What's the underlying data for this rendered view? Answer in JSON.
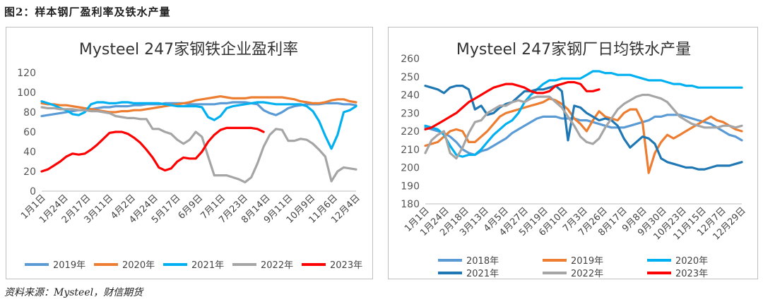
{
  "figure_title": "图2：样本钢厂盈利率及铁水产量",
  "source": "资料来源：Mysteel，财信期货",
  "colors": {
    "2018": "#5b9bd5",
    "2019": "#5b9bd5",
    "2020": "#ed7d31",
    "2021": "#00b0f0",
    "2022": "#a5a5a5",
    "2023": "#ff0000"
  },
  "chart_data": [
    {
      "type": "line",
      "title": "Mysteel 247家钢铁企业盈利率",
      "ylim": [
        0,
        120
      ],
      "yticks": [
        "0",
        "20",
        "40",
        "60",
        "80",
        "100",
        "120"
      ],
      "x_tick_labels": [
        "1月1日",
        "1月24日",
        "2月17日",
        "3月11日",
        "4月2日",
        "4月24日",
        "5月17日",
        "6月9日",
        "7月1日",
        "7月23日",
        "8月14日",
        "9月11日",
        "10月9日",
        "11月6日",
        "12月4日"
      ],
      "n_points": 52,
      "series": [
        {
          "name": "2019年",
          "color": "#5b9bd5",
          "values": [
            76,
            77,
            78,
            79,
            80,
            81,
            82,
            82,
            83,
            84,
            85,
            85,
            86,
            86,
            86,
            87,
            87,
            88,
            88,
            88,
            89,
            89,
            89,
            89,
            88,
            88,
            88,
            88,
            88,
            89,
            89,
            90,
            90,
            90,
            89,
            88,
            82,
            79,
            77,
            80,
            84,
            86,
            87,
            88,
            88,
            88,
            89,
            89,
            89,
            88,
            88,
            87
          ]
        },
        {
          "name": "2020年",
          "color": "#ed7d31",
          "values": [
            89,
            88,
            88,
            87,
            87,
            86,
            85,
            84,
            83,
            82,
            81,
            80,
            80,
            81,
            81,
            82,
            82,
            83,
            84,
            85,
            86,
            87,
            88,
            89,
            90,
            92,
            93,
            94,
            95,
            96,
            95,
            94,
            94,
            94,
            95,
            95,
            95,
            95,
            95,
            95,
            94,
            93,
            91,
            90,
            89,
            89,
            90,
            92,
            93,
            93,
            91,
            90
          ]
        },
        {
          "name": "2021年",
          "color": "#00b0f0",
          "values": [
            91,
            89,
            87,
            84,
            82,
            78,
            77,
            80,
            88,
            90,
            90,
            89,
            89,
            90,
            90,
            89,
            89,
            89,
            89,
            89,
            88,
            87,
            86,
            86,
            86,
            86,
            85,
            75,
            72,
            76,
            84,
            86,
            87,
            88,
            89,
            90,
            90,
            89,
            88,
            88,
            88,
            88,
            88,
            86,
            81,
            71,
            56,
            43,
            57,
            80,
            82,
            86
          ]
        },
        {
          "name": "2022年",
          "color": "#a5a5a5",
          "values": [
            85,
            84,
            84,
            83,
            83,
            83,
            82,
            82,
            81,
            81,
            80,
            79,
            76,
            75,
            74,
            74,
            73,
            73,
            63,
            63,
            60,
            58,
            52,
            48,
            52,
            60,
            55,
            35,
            16,
            16,
            16,
            14,
            12,
            9,
            14,
            28,
            45,
            57,
            63,
            62,
            51,
            51,
            53,
            52,
            48,
            42,
            35,
            10,
            20,
            24,
            23,
            22
          ]
        },
        {
          "name": "2023年",
          "color": "#ff0000",
          "values": [
            20,
            22,
            26,
            30,
            35,
            38,
            37,
            38,
            42,
            47,
            53,
            59,
            60,
            60,
            58,
            54,
            49,
            42,
            34,
            24,
            21,
            23,
            30,
            34,
            33,
            33,
            40,
            50,
            57,
            62,
            64,
            64,
            64,
            64,
            64,
            63,
            60
          ]
        }
      ]
    },
    {
      "type": "line",
      "title": "Mysteel 247家钢厂日均铁水产量",
      "ylim": [
        180,
        260
      ],
      "yticks": [
        "180",
        "190",
        "200",
        "210",
        "220",
        "230",
        "240",
        "250",
        "260"
      ],
      "x_tick_labels": [
        "1月1日",
        "1月24日",
        "2月18日",
        "3月13日",
        "4月5日",
        "4月27日",
        "5月19日",
        "6月10日",
        "7月3日",
        "7月26日",
        "8月17日",
        "9月8日",
        "9月30日",
        "10月23日",
        "11月15日",
        "12月7日",
        "12月29日"
      ],
      "n_points": 52,
      "series": [
        {
          "name": "2018年",
          "color": "#5b9bd5",
          "values": [
            222,
            221,
            220,
            219,
            217,
            214,
            210,
            208,
            207,
            209,
            210,
            212,
            214,
            216,
            219,
            221,
            223,
            225,
            227,
            228,
            228,
            228,
            227,
            227,
            227,
            226,
            226,
            225,
            224,
            223,
            222,
            222,
            222,
            223,
            224,
            225,
            226,
            228,
            228,
            229,
            229,
            229,
            228,
            227,
            226,
            225,
            224,
            222,
            220,
            218,
            217,
            215
          ]
        },
        {
          "name": "2019年",
          "color": "#ed7d31",
          "values": [
            212,
            213,
            214,
            217,
            220,
            221,
            220,
            214,
            214,
            217,
            220,
            224,
            228,
            230,
            231,
            232,
            233,
            234,
            235,
            236,
            238,
            237,
            235,
            232,
            227,
            224,
            220,
            226,
            231,
            228,
            227,
            226,
            230,
            232,
            232,
            225,
            197,
            208,
            214,
            218,
            216,
            218,
            220,
            222,
            224,
            226,
            228,
            226,
            225,
            223,
            221,
            220
          ]
        },
        {
          "name": "2020年",
          "color": "#00b0f0",
          "values": [
            223,
            222,
            221,
            218,
            212,
            207,
            206,
            207,
            207,
            210,
            214,
            218,
            221,
            224,
            226,
            230,
            236,
            240,
            243,
            246,
            248,
            248,
            249,
            249,
            249,
            249,
            251,
            253,
            253,
            252,
            252,
            251,
            251,
            251,
            250,
            249,
            248,
            248,
            248,
            247,
            246,
            246,
            245,
            245,
            244,
            244,
            244,
            244,
            244,
            244,
            244,
            244
          ]
        },
        {
          "name": "2021年",
          "color": "#1f77b4",
          "values": [
            245,
            244,
            243,
            241,
            244,
            245,
            245,
            243,
            232,
            234,
            229,
            230,
            233,
            235,
            236,
            239,
            242,
            242,
            243,
            243,
            244,
            245,
            242,
            215,
            234,
            233,
            230,
            228,
            226,
            227,
            226,
            223,
            216,
            211,
            214,
            217,
            216,
            213,
            205,
            203,
            202,
            201,
            200,
            200,
            199,
            199,
            200,
            201,
            201,
            201,
            202,
            203
          ]
        },
        {
          "name": "2022年",
          "color": "#a5a5a5",
          "values": [
            208,
            215,
            218,
            220,
            208,
            205,
            211,
            219,
            225,
            226,
            230,
            232,
            234,
            234,
            236,
            237,
            236,
            238,
            239,
            239,
            239,
            236,
            233,
            228,
            223,
            217,
            214,
            213,
            216,
            222,
            227,
            232,
            235,
            237,
            239,
            240,
            240,
            239,
            238,
            236,
            232,
            228,
            226,
            224,
            223,
            222,
            222,
            222,
            223,
            223,
            222,
            223
          ]
        },
        {
          "name": "2023年",
          "color": "#ff0000",
          "values": [
            221,
            222,
            224,
            226,
            228,
            230,
            233,
            236,
            238,
            240,
            242,
            244,
            245,
            246,
            246,
            245,
            244,
            242,
            241,
            241,
            242,
            245,
            246,
            247,
            247,
            246,
            242,
            242,
            243
          ]
        }
      ]
    }
  ],
  "legend_left": [
    "2019年",
    "2020年",
    "2021年",
    "2022年",
    "2023年"
  ],
  "legend_right": [
    "2018年",
    "2019年",
    "2020年",
    "2021年",
    "2022年",
    "2023年"
  ]
}
